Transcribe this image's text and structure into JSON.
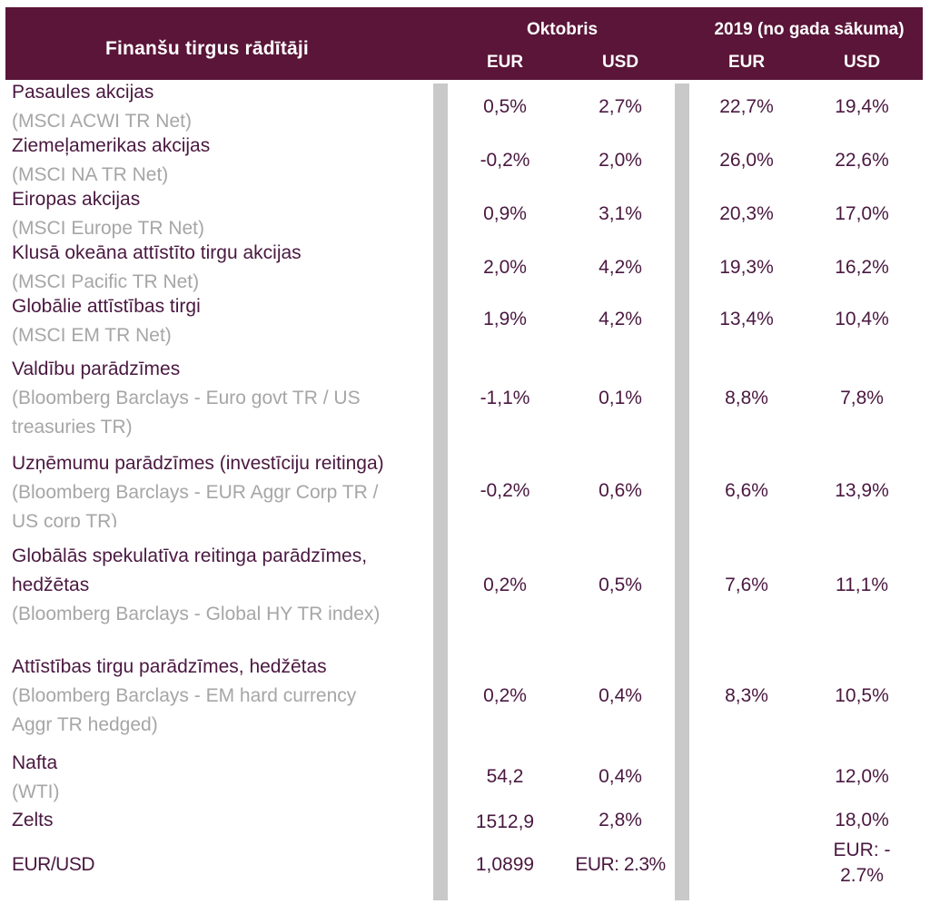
{
  "header": {
    "title": "Finanšu tirgus rādītāji",
    "group_month": "Oktobris",
    "group_ytd": "2019 (no gada sākuma)",
    "eur": "EUR",
    "usd": "USD"
  },
  "colors": {
    "header_bg": "#5a1538",
    "label_text": "#4a1840",
    "sub_text": "#a6a6a6",
    "divider": "#c9c9c9"
  },
  "rows": [
    {
      "label": "Pasaules akcijas",
      "sub1": "(MSCI ACWI TR Net)",
      "m_eur": "0,5%",
      "m_usd": "2,7%",
      "y_eur": "22,7%",
      "y_usd": "19,4%"
    },
    {
      "label": "Ziemeļamerikas akcijas",
      "sub1": "(MSCI NA TR Net)",
      "m_eur": "-0,2%",
      "m_usd": "2,0%",
      "y_eur": "26,0%",
      "y_usd": "22,6%"
    },
    {
      "label": "Eiropas akcijas",
      "sub1": "(MSCI Europe TR Net)",
      "m_eur": "0,9%",
      "m_usd": "3,1%",
      "y_eur": "20,3%",
      "y_usd": "17,0%"
    },
    {
      "label": "Klusā okeāna attīstīto tirgu akcijas",
      "sub1": "(MSCI Pacific TR Net)",
      "m_eur": "2,0%",
      "m_usd": "4,2%",
      "y_eur": "19,3%",
      "y_usd": "16,2%"
    },
    {
      "label": "Globālie attīstības tirgi",
      "sub1": "(MSCI EM TR Net)",
      "m_eur": "1,9%",
      "m_usd": "4,2%",
      "y_eur": "13,4%",
      "y_usd": "10,4%"
    },
    {
      "label": "Valdību parādzīmes",
      "sub1": "(Bloomberg Barclays - Euro govt TR / US",
      "sub2": "treasuries TR)",
      "m_eur": "-1,1%",
      "m_usd": "0,1%",
      "y_eur": "8,8%",
      "y_usd": "7,8%"
    },
    {
      "label": "Uzņēmumu parādzīmes (investīciju reitinga)",
      "sub1": "(Bloomberg Barclays - EUR Aggr Corp TR /",
      "sub2": "US corp TR)",
      "m_eur": "-0,2%",
      "m_usd": "0,6%",
      "y_eur": "6,6%",
      "y_usd": "13,9%"
    },
    {
      "label": "Globālās spekulatīva reitinga parādzīmes,",
      "label2": "hedžētas",
      "sub1": "(Bloomberg Barclays - Global HY TR index)",
      "m_eur": "0,2%",
      "m_usd": "0,5%",
      "y_eur": "7,6%",
      "y_usd": "11,1%"
    },
    {
      "label": "Attīstības tirgu parādzīmes, hedžētas",
      "sub1": "(Bloomberg Barclays - EM hard currency",
      "sub2": "Aggr TR hedged)",
      "m_eur": "0,2%",
      "m_usd": "0,4%",
      "y_eur": "8,3%",
      "y_usd": "10,5%"
    },
    {
      "label": "Nafta",
      "sub1": "(WTI)",
      "m_eur": "54,2",
      "m_usd": "0,4%",
      "y_eur": "",
      "y_usd": "12,0%"
    },
    {
      "label": "Zelts",
      "m_eur": "1512,9",
      "m_usd": "2,8%",
      "y_eur": "",
      "y_usd": "18,0%"
    },
    {
      "label": "EUR/USD",
      "m_eur": "1,0899",
      "m_usd": "EUR: 2.3%",
      "y_eur": "",
      "y_usd": "EUR: -",
      "y_usd2": "2.7%"
    }
  ]
}
